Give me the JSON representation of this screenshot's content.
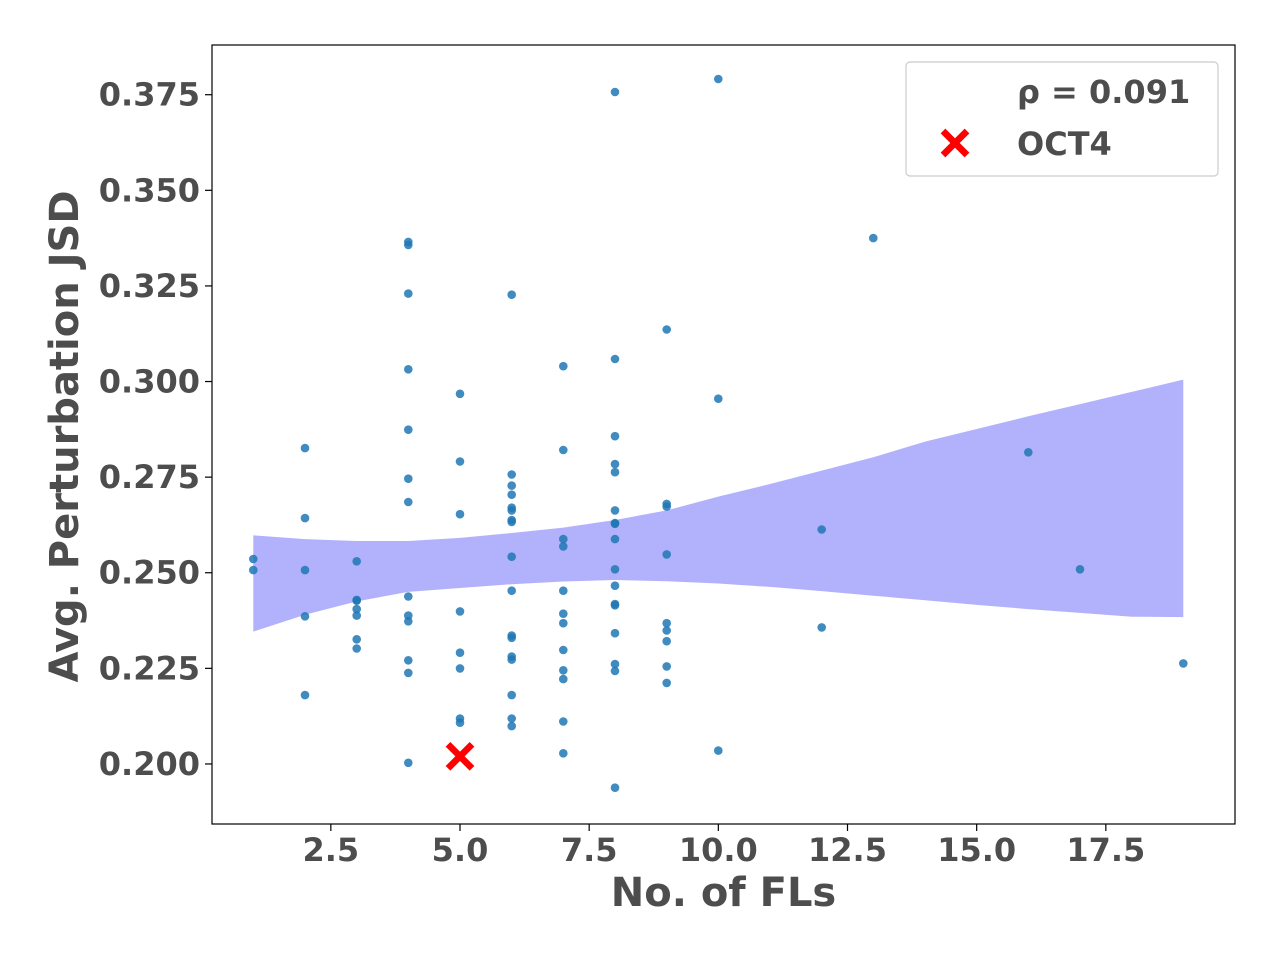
{
  "chart_data": {
    "type": "scatter",
    "xlabel": "No. of FLs",
    "ylabel": "Avg. Perturbation JSD",
    "xlim": [
      0.2,
      20.0
    ],
    "ylim": [
      0.1843,
      0.388
    ],
    "x_ticks": [
      "2.5",
      "5.0",
      "7.5",
      "10.0",
      "12.5",
      "15.0",
      "17.5"
    ],
    "x_tick_values": [
      2.5,
      5.0,
      7.5,
      10.0,
      12.5,
      15.0,
      17.5
    ],
    "y_ticks": [
      "0.200",
      "0.225",
      "0.250",
      "0.275",
      "0.300",
      "0.325",
      "0.350",
      "0.375"
    ],
    "y_tick_values": [
      0.2,
      0.225,
      0.25,
      0.275,
      0.3,
      0.325,
      0.35,
      0.375
    ],
    "grid": false,
    "legend_placement": "top-right",
    "point_color": "#1f77b4",
    "highlight_color": "#ff0000",
    "band_color": "#b2b2fc",
    "series": [
      {
        "values": [
          [
            1,
            0.2536
          ],
          [
            1,
            0.2507
          ],
          [
            2,
            0.2826
          ],
          [
            2,
            0.2643
          ],
          [
            2,
            0.2507
          ],
          [
            2,
            0.2386
          ],
          [
            2,
            0.218
          ],
          [
            3,
            0.253
          ],
          [
            3,
            0.2429
          ],
          [
            3,
            0.2427
          ],
          [
            3,
            0.2405
          ],
          [
            3,
            0.2388
          ],
          [
            3,
            0.2326
          ],
          [
            3,
            0.2302
          ],
          [
            4,
            0.3365
          ],
          [
            4,
            0.3357
          ],
          [
            4,
            0.323
          ],
          [
            4,
            0.3032
          ],
          [
            4,
            0.2874
          ],
          [
            4,
            0.2746
          ],
          [
            4,
            0.2685
          ],
          [
            4,
            0.2438
          ],
          [
            4,
            0.2388
          ],
          [
            4,
            0.2373
          ],
          [
            4,
            0.2271
          ],
          [
            4,
            0.2238
          ],
          [
            4,
            0.2003
          ],
          [
            5,
            0.2968
          ],
          [
            5,
            0.2791
          ],
          [
            5,
            0.2653
          ],
          [
            5,
            0.2399
          ],
          [
            5,
            0.2291
          ],
          [
            5,
            0.225
          ],
          [
            5,
            0.2119
          ],
          [
            5,
            0.2108
          ],
          [
            6,
            0.3227
          ],
          [
            6,
            0.2757
          ],
          [
            6,
            0.2728
          ],
          [
            6,
            0.2704
          ],
          [
            6,
            0.267
          ],
          [
            6,
            0.2663
          ],
          [
            6,
            0.2638
          ],
          [
            6,
            0.2633
          ],
          [
            6,
            0.2542
          ],
          [
            6,
            0.2453
          ],
          [
            6,
            0.2336
          ],
          [
            6,
            0.233
          ],
          [
            6,
            0.2281
          ],
          [
            6,
            0.2273
          ],
          [
            6,
            0.218
          ],
          [
            6,
            0.2119
          ],
          [
            6,
            0.2099
          ],
          [
            7,
            0.304
          ],
          [
            7,
            0.2821
          ],
          [
            7,
            0.2588
          ],
          [
            7,
            0.2569
          ],
          [
            7,
            0.2453
          ],
          [
            7,
            0.2393
          ],
          [
            7,
            0.2368
          ],
          [
            7,
            0.2298
          ],
          [
            7,
            0.2245
          ],
          [
            7,
            0.2222
          ],
          [
            7,
            0.2111
          ],
          [
            7,
            0.2028
          ],
          [
            8,
            0.3757
          ],
          [
            8,
            0.3059
          ],
          [
            8,
            0.2857
          ],
          [
            8,
            0.2784
          ],
          [
            8,
            0.2763
          ],
          [
            8,
            0.2663
          ],
          [
            8,
            0.263
          ],
          [
            8,
            0.2628
          ],
          [
            8,
            0.2588
          ],
          [
            8,
            0.2509
          ],
          [
            8,
            0.2466
          ],
          [
            8,
            0.2418
          ],
          [
            8,
            0.2415
          ],
          [
            8,
            0.2342
          ],
          [
            8,
            0.2261
          ],
          [
            8,
            0.2243
          ],
          [
            8,
            0.1938
          ],
          [
            9,
            0.3136
          ],
          [
            9,
            0.268
          ],
          [
            9,
            0.2673
          ],
          [
            9,
            0.2548
          ],
          [
            9,
            0.2368
          ],
          [
            9,
            0.2349
          ],
          [
            9,
            0.2321
          ],
          [
            9,
            0.2255
          ],
          [
            9,
            0.2212
          ],
          [
            10,
            0.3791
          ],
          [
            10,
            0.2955
          ],
          [
            10,
            0.2035
          ],
          [
            12,
            0.2613
          ],
          [
            12,
            0.2357
          ],
          [
            13,
            0.3375
          ],
          [
            16,
            0.2815
          ],
          [
            17,
            0.2509
          ],
          [
            19,
            0.2263
          ]
        ]
      }
    ],
    "highlight": {
      "name": "OCT4",
      "x": 5,
      "y": 0.202
    },
    "band": {
      "x": [
        1,
        2,
        3,
        4,
        5,
        6,
        7,
        8,
        9,
        10,
        11,
        12,
        13,
        14,
        15,
        16,
        17,
        18,
        19
      ],
      "lower": [
        0.2346,
        0.239,
        0.2425,
        0.245,
        0.246,
        0.247,
        0.2477,
        0.2481,
        0.2478,
        0.2472,
        0.2463,
        0.2452,
        0.244,
        0.2428,
        0.2416,
        0.2405,
        0.2395,
        0.2385,
        0.2384
      ],
      "upper": [
        0.2598,
        0.2588,
        0.2583,
        0.2583,
        0.2591,
        0.2604,
        0.2618,
        0.2638,
        0.2663,
        0.2699,
        0.2732,
        0.2767,
        0.2802,
        0.2843,
        0.2876,
        0.2909,
        0.2941,
        0.2973,
        0.3005
      ]
    },
    "legend": [
      {
        "label": "ρ = 0.091",
        "marker": "none"
      },
      {
        "label": "OCT4",
        "marker": "red-x"
      }
    ]
  }
}
